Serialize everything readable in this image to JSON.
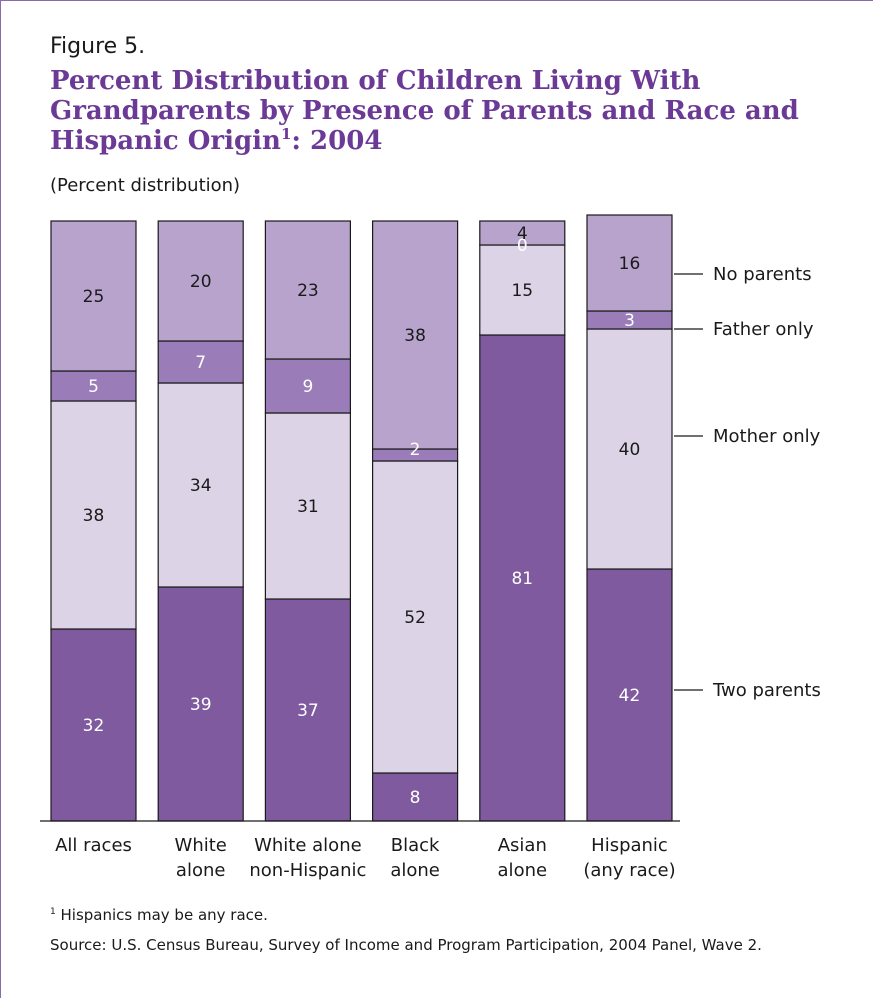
{
  "figure": {
    "label": "Figure 5.",
    "title": "Percent Distribution of Children Living With Grandparents by Presence of Parents and Race and Hispanic Origin",
    "title_sup": "1",
    "title_tail": ": 2004",
    "subtitle": "(Percent distribution)"
  },
  "notes": {
    "footnote_marker": "1",
    "footnote": " Hispanics may be any race.",
    "source": "Source:  U.S. Census Bureau, Survey of Income and Program Participation, 2004 Panel, Wave 2."
  },
  "chart_data": {
    "type": "bar",
    "stacked": true,
    "orientation": "vertical",
    "categories": [
      [
        "All races"
      ],
      [
        "White",
        "alone"
      ],
      [
        "White alone",
        "non-Hispanic"
      ],
      [
        "Black",
        "alone"
      ],
      [
        "Asian",
        "alone"
      ],
      [
        "Hispanic",
        "(any race)"
      ]
    ],
    "series": [
      {
        "name": "Two parents",
        "values": [
          32,
          39,
          37,
          8,
          81,
          42
        ],
        "color": "#7f5a9f",
        "label_color": "#ffffff"
      },
      {
        "name": "Mother only",
        "values": [
          38,
          34,
          31,
          52,
          15,
          40
        ],
        "color": "#ddd3e6",
        "label_color": "#1a1a1a"
      },
      {
        "name": "Father only",
        "values": [
          5,
          7,
          9,
          2,
          0,
          3
        ],
        "color": "#9a7cb8",
        "label_color": "#ffffff"
      },
      {
        "name": "No parents",
        "values": [
          25,
          20,
          23,
          38,
          4,
          16
        ],
        "color": "#b7a3cc",
        "label_color": "#1a1a1a"
      }
    ],
    "legend_placement": "right",
    "ylim": [
      0,
      100
    ],
    "grid": false
  }
}
